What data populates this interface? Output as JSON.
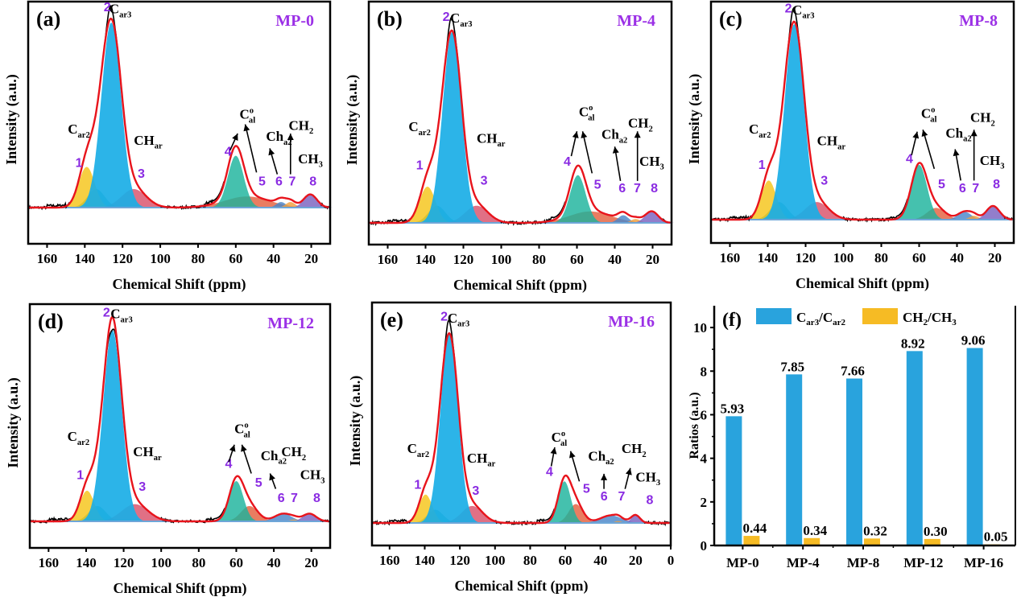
{
  "colors": {
    "experimental": "#000000",
    "fitted": "#e8141c",
    "baseline": "#6ea6d8",
    "annotation_number": "#8a2be2",
    "sample_label": "#9b30e6",
    "peak_fills": [
      "#f5c518",
      "#1aaee6",
      "#d9506a",
      "#1cb39c",
      "#e4603e",
      "#4a86c8",
      "#f0a040",
      "#7a62c0"
    ],
    "shoulder_fill": "#2aa89a",
    "bar_car3_car2": "#29a3dd",
    "bar_ch2_ch3": "#f6bb24"
  },
  "chart_data": [
    {
      "panel": "(a)",
      "sample": "MP-0",
      "type": "area",
      "xlabel": "Chemical Shift (ppm)",
      "ylabel": "Intensity (a.u.)",
      "xlim": [
        170,
        10
      ],
      "xticks": [
        160,
        140,
        120,
        100,
        80,
        60,
        40,
        20
      ],
      "peaks": [
        {
          "id": 1,
          "center": 139,
          "width": 4.2,
          "height": 0.22
        },
        {
          "id": "1b",
          "center": 134,
          "width": 4.5,
          "height": 0.1
        },
        {
          "id": 2,
          "center": 126,
          "width": 5.2,
          "height": 1.0
        },
        {
          "id": 3,
          "center": 114,
          "width": 6.5,
          "height": 0.1
        },
        {
          "id": 4,
          "center": 60,
          "width": 4.2,
          "height": 0.28
        },
        {
          "id": 5,
          "center": 54,
          "width": 12,
          "height": 0.06
        },
        {
          "id": 6,
          "center": 36,
          "width": 2.5,
          "height": 0.03
        },
        {
          "id": 7,
          "center": 31,
          "width": 2.5,
          "height": 0.03
        },
        {
          "id": 8,
          "center": 20.5,
          "width": 3.5,
          "height": 0.07
        }
      ],
      "annotations": {
        "car3": "C",
        "car3_sub": "ar3",
        "car2": "C",
        "car2_sub": "ar2",
        "char": "CH",
        "char_sub": "ar",
        "cal": "C",
        "cal_sup": "o",
        "cal_sub": "al",
        "cha2": "Ch",
        "cha2_sub": "a2",
        "ch2": "CH",
        "ch2_sub": "2",
        "ch3": "CH",
        "ch3_sub": "3",
        "numbers": [
          "1",
          "2",
          "3",
          "4",
          "5",
          "6",
          "7",
          "8"
        ]
      }
    },
    {
      "panel": "(b)",
      "sample": "MP-4",
      "type": "area",
      "xlabel": "Chemical Shift (ppm)",
      "ylabel": "Intensity (a.u.)",
      "xlim": [
        170,
        10
      ],
      "xticks": [
        160,
        140,
        120,
        100,
        80,
        60,
        40,
        20
      ],
      "peaks": [
        {
          "id": 1,
          "center": 139,
          "width": 4.2,
          "height": 0.19
        },
        {
          "id": "1b",
          "center": 134,
          "width": 4.5,
          "height": 0.09
        },
        {
          "id": 2,
          "center": 126,
          "width": 5.0,
          "height": 1.0
        },
        {
          "id": 3,
          "center": 113,
          "width": 6.0,
          "height": 0.09
        },
        {
          "id": 4,
          "center": 59.5,
          "width": 4.2,
          "height": 0.25
        },
        {
          "id": 5,
          "center": 53,
          "width": 11,
          "height": 0.06
        },
        {
          "id": 6,
          "center": 35.5,
          "width": 2.8,
          "height": 0.04
        },
        {
          "id": 7,
          "center": 29,
          "width": 2.5,
          "height": 0.02
        },
        {
          "id": 8,
          "center": 20.5,
          "width": 3.5,
          "height": 0.06
        }
      ],
      "annotations": {
        "car3": "C",
        "car3_sub": "ar3",
        "car2": "C",
        "car2_sub": "ar2",
        "char": "CH",
        "char_sub": "ar",
        "cal": "C",
        "cal_sup": "o",
        "cal_sub": "al",
        "cha2": "Ch",
        "cha2_sub": "a2",
        "ch2": "CH",
        "ch2_sub": "2",
        "ch3": "CH",
        "ch3_sub": "3",
        "numbers": [
          "1",
          "2",
          "3",
          "4",
          "5",
          "6",
          "7",
          "8"
        ]
      }
    },
    {
      "panel": "(c)",
      "sample": "MP-8",
      "type": "area",
      "xlabel": "Chemical Shift (ppm)",
      "ylabel": "Intensity (a.u.)",
      "xlim": [
        170,
        10
      ],
      "xticks": [
        160,
        140,
        120,
        100,
        80,
        60,
        40,
        20
      ],
      "peaks": [
        {
          "id": 1,
          "center": 139.5,
          "width": 4.0,
          "height": 0.2
        },
        {
          "id": "1b",
          "center": 134,
          "width": 4.5,
          "height": 0.09
        },
        {
          "id": 2,
          "center": 126,
          "width": 5.1,
          "height": 1.0
        },
        {
          "id": 3,
          "center": 114,
          "width": 6.2,
          "height": 0.09
        },
        {
          "id": 4,
          "center": 60,
          "width": 4.2,
          "height": 0.28
        },
        {
          "id": 5,
          "center": 51,
          "width": 4.8,
          "height": 0.06
        },
        {
          "id": 6,
          "center": 36,
          "width": 3.5,
          "height": 0.04
        },
        {
          "id": 7,
          "center": 31,
          "width": 2.5,
          "height": 0.02
        },
        {
          "id": 8,
          "center": 21,
          "width": 3.5,
          "height": 0.07
        }
      ],
      "annotations": {
        "car3": "C",
        "car3_sub": "ar3",
        "car2": "C",
        "car2_sub": "ar2",
        "char": "CH",
        "char_sub": "ar",
        "cal": "C",
        "cal_sup": "o",
        "cal_sub": "al",
        "cha2": "Ch",
        "cha2_sub": "a2",
        "ch2": "CH",
        "ch2_sub": "2",
        "ch3": "CH",
        "ch3_sub": "3",
        "numbers": [
          "1",
          "2",
          "3",
          "4",
          "5",
          "6",
          "7",
          "8"
        ]
      }
    },
    {
      "panel": "(d)",
      "sample": "MP-12",
      "type": "area",
      "xlabel": "Chemical Shift (ppm)",
      "ylabel": "Intensity (a.u.)",
      "xlim": [
        170,
        10
      ],
      "xticks": [
        160,
        140,
        120,
        100,
        80,
        60,
        40,
        20
      ],
      "peaks": [
        {
          "id": 1,
          "center": 139.5,
          "width": 3.8,
          "height": 0.16
        },
        {
          "id": "1b",
          "center": 134,
          "width": 4.5,
          "height": 0.08
        },
        {
          "id": 2,
          "center": 126,
          "width": 5.0,
          "height": 1.0
        },
        {
          "id": 3,
          "center": 114,
          "width": 7.0,
          "height": 0.09
        },
        {
          "id": 4,
          "center": 60,
          "width": 3.8,
          "height": 0.21
        },
        {
          "id": 5,
          "center": 53,
          "width": 4.5,
          "height": 0.08
        },
        {
          "id": 6,
          "center": 35,
          "width": 4.5,
          "height": 0.04
        },
        {
          "id": 7,
          "center": 29,
          "width": 2.5,
          "height": 0.01
        },
        {
          "id": 8,
          "center": 21,
          "width": 3.5,
          "height": 0.04
        }
      ],
      "annotations": {
        "car3": "C",
        "car3_sub": "ar3",
        "car2": "C",
        "car2_sub": "ar2",
        "char": "CH",
        "char_sub": "ar",
        "cal": "C",
        "cal_sup": "o",
        "cal_sub": "al",
        "cha2": "Ch",
        "cha2_sub": "a2",
        "ch2": "CH",
        "ch2_sub": "2",
        "ch3": "CH",
        "ch3_sub": "3",
        "numbers": [
          "1",
          "2",
          "3",
          "4",
          "5",
          "6",
          "7",
          "8"
        ]
      }
    },
    {
      "panel": "(e)",
      "sample": "MP-16",
      "type": "area",
      "xlabel": "Chemical Shift (ppm)",
      "ylabel": "Intensity (a.u.)",
      "xlim": [
        170,
        0
      ],
      "xticks": [
        160,
        140,
        120,
        100,
        80,
        60,
        40,
        20,
        0
      ],
      "peaks": [
        {
          "id": 1,
          "center": 139.5,
          "width": 3.8,
          "height": 0.15
        },
        {
          "id": "1b",
          "center": 134,
          "width": 4.5,
          "height": 0.07
        },
        {
          "id": 2,
          "center": 126,
          "width": 5.0,
          "height": 1.0
        },
        {
          "id": 3,
          "center": 113,
          "width": 6.0,
          "height": 0.09
        },
        {
          "id": 4,
          "center": 60.5,
          "width": 3.6,
          "height": 0.22
        },
        {
          "id": 5,
          "center": 54,
          "width": 4.0,
          "height": 0.1
        },
        {
          "id": 6,
          "center": 34,
          "width": 6.0,
          "height": 0.04
        },
        {
          "id": 7,
          "center": 30,
          "width": 2.0,
          "height": 0.01
        },
        {
          "id": 8,
          "center": 20,
          "width": 2.5,
          "height": 0.04
        }
      ],
      "annotations": {
        "car3": "C",
        "car3_sub": "ar3",
        "car2": "C",
        "car2_sub": "ar2",
        "char": "CH",
        "char_sub": "ar",
        "cal": "C",
        "cal_sup": "o",
        "cal_sub": "al",
        "cha2": "Ch",
        "cha2_sub": "a2",
        "ch2": "CH",
        "ch2_sub": "2",
        "ch3": "CH",
        "ch3_sub": "3",
        "numbers": [
          "1",
          "2",
          "3",
          "4",
          "5",
          "6",
          "7",
          "8"
        ]
      }
    },
    {
      "panel": "(f)",
      "type": "bar",
      "title": "",
      "xlabel": "",
      "ylabel": "Ratios (a.u.)",
      "ylim": [
        0,
        11
      ],
      "yticks": [
        0,
        2,
        4,
        6,
        8,
        10
      ],
      "categories": [
        "MP-0",
        "MP-4",
        "MP-8",
        "MP-12",
        "MP-16"
      ],
      "series": [
        {
          "name": "Car3/Car2",
          "name_main": "C",
          "name_sub1": "ar3",
          "name_mid": "/C",
          "name_sub2": "ar2",
          "values": [
            5.93,
            7.85,
            7.66,
            8.92,
            9.06
          ],
          "labels": [
            "5.93",
            "7.85",
            "7.66",
            "8.92",
            "9.06"
          ]
        },
        {
          "name": "CH2/CH3",
          "name_main": "CH",
          "name_sub1": "2",
          "name_mid": "/CH",
          "name_sub2": "3",
          "values": [
            0.44,
            0.34,
            0.32,
            0.3,
            0.05
          ],
          "labels": [
            "0.44",
            "0.34",
            "0.32",
            "0.30",
            "0.05"
          ]
        }
      ],
      "legend": "top"
    }
  ]
}
